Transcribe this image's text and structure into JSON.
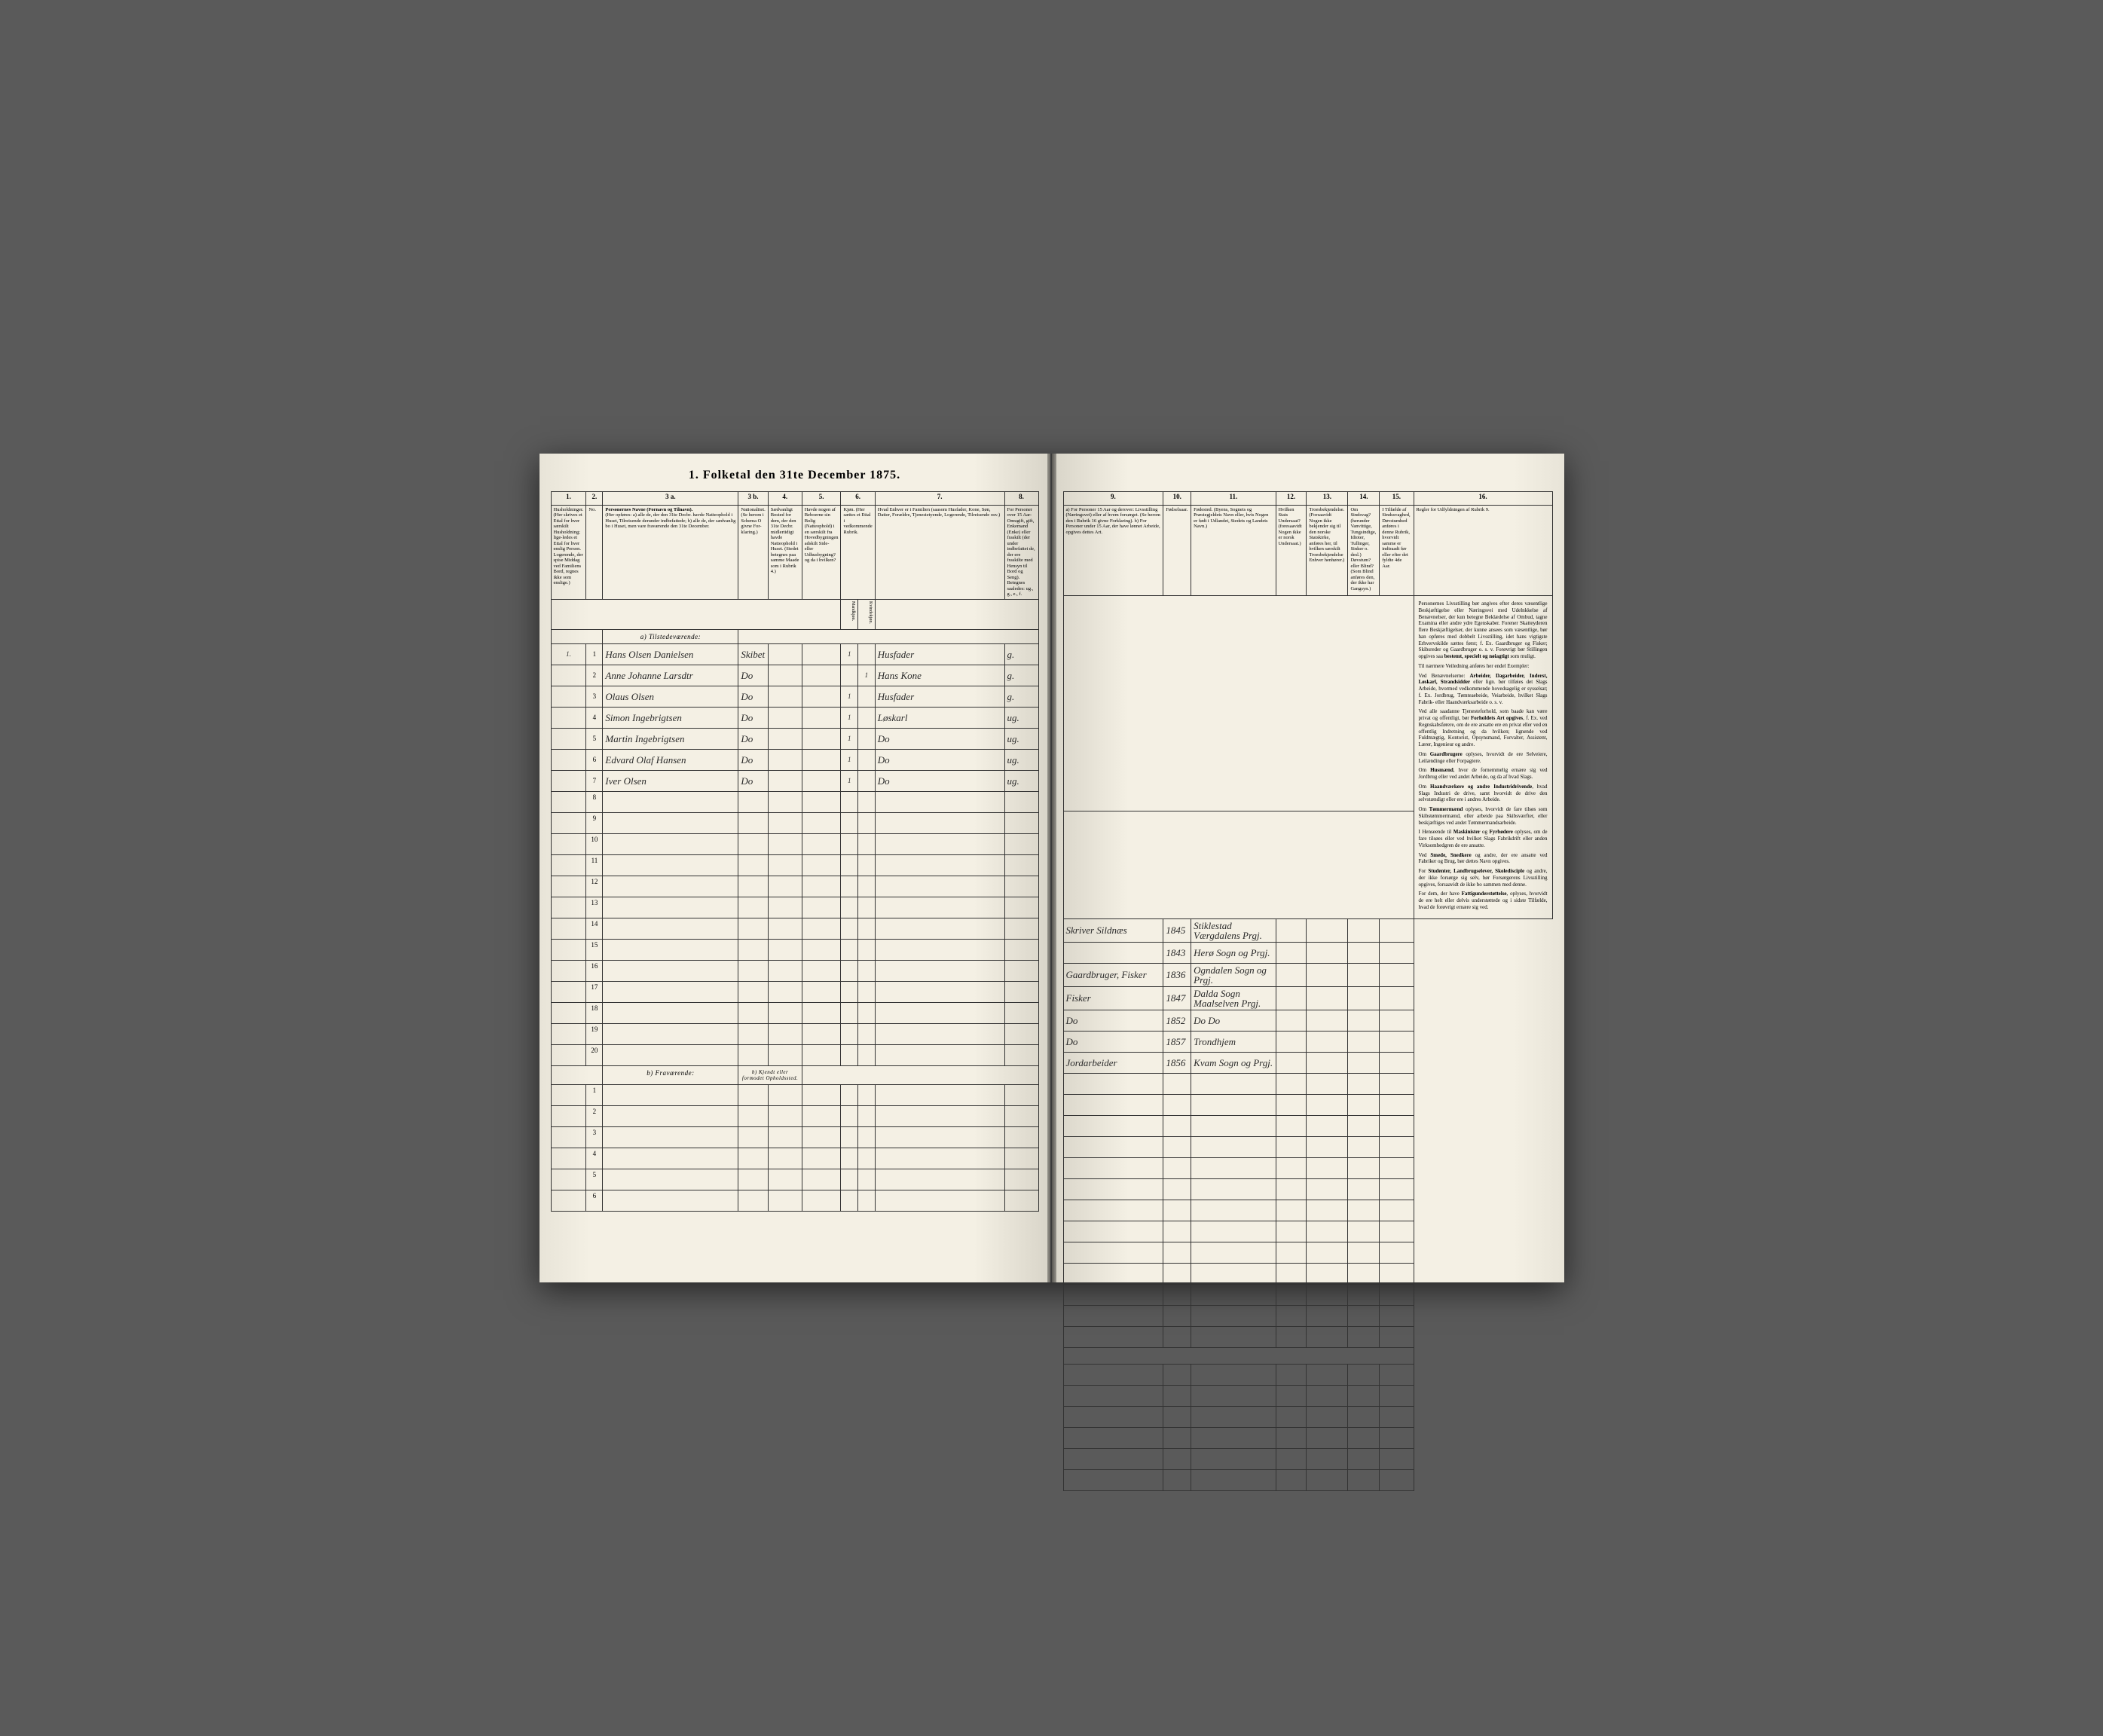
{
  "doc": {
    "title": "1. Folketal den 31te December 1875.",
    "colNums": [
      "1.",
      "2.",
      "3 a.",
      "3 b.",
      "4.",
      "5.",
      "6.",
      "7.",
      "8.",
      "9.",
      "10.",
      "11.",
      "12.",
      "13.",
      "14.",
      "15.",
      "16."
    ],
    "headersLeft": {
      "c1": "Husholdninger. (Her skrives et Ettal for hver særskilt Husholdning; lige-ledes et Ettal for hver enslig Person. Logerende, der spise Middag ved Familiens Bord, regnes ikke som enslige.)",
      "c2": "No.",
      "c3a_title": "Personernes Navne (Fornavn og Tilnavn).",
      "c3a_sub": "(Her opføres: a) alle de, der den 31te Decbr. havde Natteophold i Huset, Tilreisende derunder indbefattede; b) alle de, der sædvanlig bo i Huset, men vare fraværende den 31te December.",
      "c3b": "Nationalitet. (Se herom i Schema O givne For-klaring.)",
      "c4": "Sædvanligt Bosted for dem, der den 31te Decbr. midlertidigt havde Natteophold i Huset. (Stedet betegnes paa samme Maade som i Rubrik 4.)",
      "c5": "Havde nogen af Beboerne sin Bolig (Natteophold) i en særskilt fra Hovedbygningen adskilt Side- eller Udhusbygning? og da i hvilken?",
      "c6": "Kjøn. (Her sættes et Ettal i vedkommende Rubrik.",
      "c6m": "Mandkjøn.",
      "c6k": "Kvindekjøn.",
      "c7": "Hvad Enhver er i Familien (saasom Husfader, Kone, Søn, Datter, Forældre, Tjenestetyende, Logerende, Tilreisende osv.)",
      "c8": "For Personer over 15 Aar: Omugift, gift, Enkemand (Enke) eller fraskilt (der under indbefattet de, der ere fraskilte med Hensyn til Bord og Seng). Betegnes saaledes: ug., g., e., f."
    },
    "headersRight": {
      "c9": "a) For Personer 15 Aar og derover: Livsstilling (Næringsvei) eller af hvem forsørget. (Se herom den i Rubrik 16 givne Forklaring). b) For Personer under 15 Aar, der have lønnet Arbeide, opgives dettes Art.",
      "c10": "Fødselsaar.",
      "c11": "Fødested. (Byens, Sognets og Præstegjeldets Navn eller, hvis Nogen er født i Udlandet, Stedets og Landets Navn.)",
      "c12": "Hvilken Stats Undersaat? (foresaavidt Nogen ikke er norsk Undersaat.)",
      "c13": "Troesbekjendelse. (Forsaavidt Nogen ikke bekjender sig til den norske Statskirke, anføres her, til hvilken særskilt Troesbekjendelse Enhver henhører.)",
      "c14": "Om Sindsvag? (herunder Vanvittige, Tungsindige, Idioter, Tullinger, Sinker o. desl.) Døvstum? eller Blind? (Som Blind anføres den, der ikke har Gangsyn.)",
      "c15": "I Tilfælde af Sindssvaghed, Døvstumhed anføres i denne Rubrik, hvorvidt samme er indtraadt før eller efter det fyldte 4de Aar.",
      "c16": "Regler for Udfyldningen af Rubrik 9."
    },
    "sectionA": "a) Tilstedeværende:",
    "sectionB": "b) Fraværende:",
    "sectionBNote": "b) Kjendt eller formodet Opholdssted.",
    "entries": [
      {
        "hh": "1.",
        "n": "1",
        "name": "Hans Olsen Danielsen",
        "nat": "Skibet",
        "c4": "",
        "c5": "",
        "m": "1",
        "k": "",
        "fam": "Husfader",
        "civ": "g.",
        "occ": "Skriver Sildnæs",
        "yr": "1845",
        "place": "Stiklestad Værgdalens Prgj."
      },
      {
        "hh": "",
        "n": "2",
        "name": "Anne Johanne Larsdtr",
        "nat": "Do",
        "c4": "",
        "c5": "",
        "m": "",
        "k": "1",
        "fam": "Hans Kone",
        "civ": "g.",
        "occ": "",
        "yr": "1843",
        "place": "Herø Sogn og Prgj."
      },
      {
        "hh": "",
        "n": "3",
        "name": "Olaus Olsen",
        "nat": "Do",
        "c4": "",
        "c5": "",
        "m": "1",
        "k": "",
        "fam": "Husfader",
        "civ": "g.",
        "occ": "Gaardbruger, Fisker",
        "yr": "1836",
        "place": "Ogndalen Sogn og Prgj."
      },
      {
        "hh": "",
        "n": "4",
        "name": "Simon Ingebrigtsen",
        "nat": "Do",
        "c4": "",
        "c5": "",
        "m": "1",
        "k": "",
        "fam": "Løskarl",
        "civ": "ug.",
        "occ": "Fisker",
        "yr": "1847",
        "place": "Dalda Sogn Maalselven Prgj."
      },
      {
        "hh": "",
        "n": "5",
        "name": "Martin Ingebrigtsen",
        "nat": "Do",
        "c4": "",
        "c5": "",
        "m": "1",
        "k": "",
        "fam": "Do",
        "civ": "ug.",
        "occ": "Do",
        "yr": "1852",
        "place": "Do Do"
      },
      {
        "hh": "",
        "n": "6",
        "name": "Edvard Olaf Hansen",
        "nat": "Do",
        "c4": "",
        "c5": "",
        "m": "1",
        "k": "",
        "fam": "Do",
        "civ": "ug.",
        "occ": "Do",
        "yr": "1857",
        "place": "Trondhjem"
      },
      {
        "hh": "",
        "n": "7",
        "name": "Iver Olsen",
        "nat": "Do",
        "c4": "",
        "c5": "",
        "m": "1",
        "k": "",
        "fam": "Do",
        "civ": "ug.",
        "occ": "Jordarbeider",
        "yr": "1856",
        "place": "Kvam Sogn og Prgj."
      }
    ],
    "emptyRowsA": [
      8,
      9,
      10,
      11,
      12,
      13,
      14,
      15,
      16,
      17,
      18,
      19,
      20
    ],
    "emptyRowsB": [
      1,
      2,
      3,
      4,
      5,
      6
    ],
    "rules": [
      "Personernes Livsstilling bør angives efter deres væsentlige Beskjæftigelse eller Næringsvei med Udelnkkelse af Benævnelser, der kun betegne Beklædelse af Ombud, tagne Examina eller andre ydre Egenskaber. Forener Skatteyderen flere Beskjæftigelser, der kunne ansees som væsentlige, bør han opføres med dobbelt Livsstilling, idet hans vigtigste Erhvervskilde sættes først; f. Ex. Gaardbruger og Fisker; Skibsreder og Gaardbruger o. s. v. Forøvrigt bør Stillingen opgives saa bestemt, specielt og nøiagtigt som muligt.",
      "Til nærmere Veiledning anføres her endel Exempler:",
      "Ved Benævnelserne: Arbeider, Dagarbeider, Inderst, Løskarl, Strandsidder eller lign. bør tilføies det Slags Arbeide, hvormed vedkommende hovedsagelig er sysselsat; f. Ex. Jordbrug, Tømteaebeide, Veiarbeide, hvilket Slags Fabrik- eller Haandværksarbeide o. s. v.",
      "Ved alle saadanne Tjenesteforhold, som baade kan være privat og offentligt, bør Forholdets Art opgives, f. Ex. ved Regnskabsførere, om de ere ansatte ere en privat eller ved en offentlig Indretning og da hvilken; lignende ved Fuldmægtig, Kontorist, Opsynsmand, Forvalter, Assistent, Lærer, Ingenieur og andre.",
      "Om Gaardbrugere oplyses, hvorvidt de ere Selveiere, Leilændinge eller Forpagtere.",
      "Om Husmænd, hvor de fornemmelig ernære sig ved Jordbrug eller ved andet Arbeide, og da af hvad Slags.",
      "Om Haandværkere og andre Industridrivende, hvad Slags Industri de drive, samt hvorvidt de drive den selvstændigt eller ere i andres Arbeide.",
      "Om Tømmermænd oplyses, hvorvidt de fare tilsøs som Skibstømmermænd, eller arbeide paa Skibsværfter, eller beskjæftiges ved andet Tømmermandsarbeide.",
      "I Henseende til Maskinister og Fyrbødere oplyses, om de fare tilsøes eller ved hvilket Slags Fabrikdrift eller anden Virksomhedgren de ere ansatte.",
      "Ved Smede, Snedkere og andre, der ere ansatte ved Fabriker og Brug, bør dettes Navn opgives.",
      "For Studenter, Landbrugselever, Skoledisciple og andre, der ikke forsørge sig selv, bør Forsørgerens Livsstilling opgives, forsaavidt de ikke bo sammen med denne.",
      "For dem, der have Fattigunderstøttelse, oplyses, hvorvidt de ere helt eller delvis understøttede og i sidste Tilfælde, hvad de forøvrigt ernære sig ved."
    ]
  },
  "colors": {
    "pageBg": "#f4f0e4",
    "border": "#333333",
    "ink": "#2a2a2a",
    "outerBg": "#5a5a5a"
  },
  "fonts": {
    "serif": "Georgia, Times New Roman, serif",
    "script": "Brush Script MT, cursive",
    "headerSize": 7,
    "bodySize": 8,
    "titleSize": 16
  }
}
